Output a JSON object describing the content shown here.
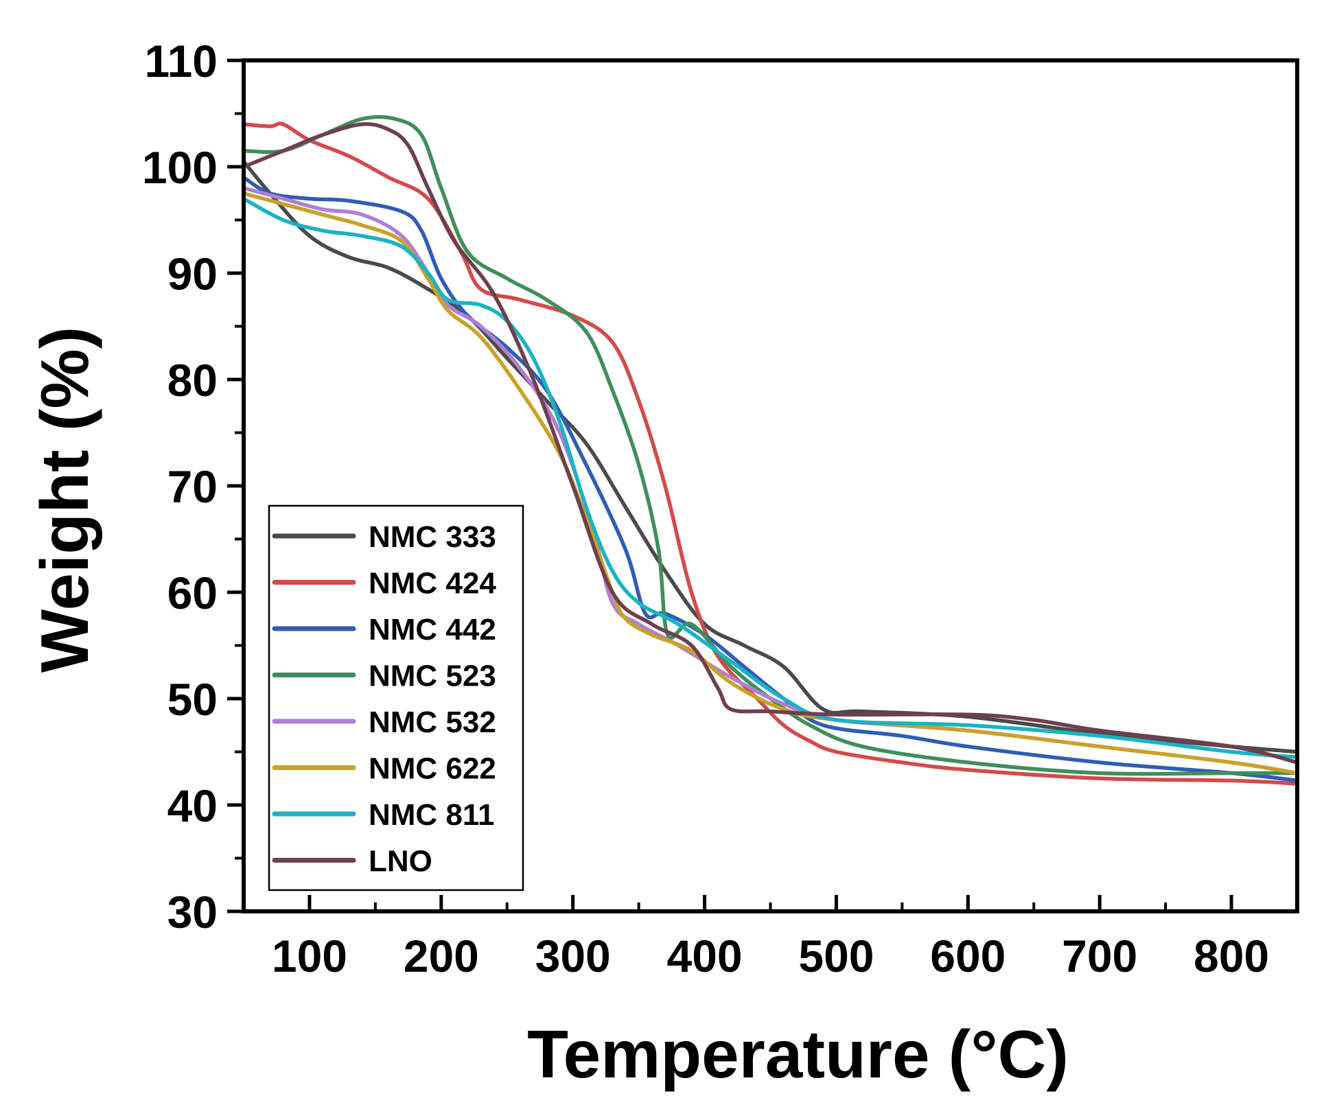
{
  "chart_data": {
    "type": "line",
    "title": "",
    "xlabel": "Temperature (°C)",
    "ylabel": "Weight (%)",
    "xlim": [
      50,
      850
    ],
    "ylim": [
      30,
      110
    ],
    "x_ticks": [
      100,
      200,
      300,
      400,
      500,
      600,
      700,
      800
    ],
    "x_tick_labels": [
      "100",
      "200",
      "300",
      "400",
      "500",
      "600",
      "700",
      "800"
    ],
    "y_ticks": [
      30,
      40,
      50,
      60,
      70,
      80,
      90,
      100,
      110
    ],
    "y_tick_labels": [
      "30",
      "40",
      "50",
      "60",
      "70",
      "80",
      "90",
      "100",
      "110"
    ],
    "grid": false,
    "legend_position": "bottom-left",
    "series": [
      {
        "name": "NMC 333",
        "color": "#4a4a4a",
        "x": [
          50,
          70,
          100,
          130,
          160,
          190,
          220,
          250,
          280,
          310,
          340,
          370,
          400,
          430,
          460,
          490,
          520,
          600,
          700,
          800,
          850
        ],
        "y": [
          100.5,
          97.5,
          93.5,
          91.5,
          90.5,
          88.5,
          86,
          82,
          78,
          74,
          68,
          62,
          57,
          55,
          53,
          49,
          48.8,
          48.3,
          46.7,
          45.5,
          45
        ]
      },
      {
        "name": "NMC 424",
        "color": "#d44a4a",
        "x": [
          50,
          70,
          80,
          100,
          130,
          160,
          190,
          215,
          230,
          260,
          300,
          330,
          350,
          370,
          390,
          410,
          440,
          460,
          480,
          500,
          550,
          600,
          700,
          800,
          850
        ],
        "y": [
          104,
          103.8,
          104,
          102.5,
          101,
          99,
          97,
          92,
          88.5,
          87.5,
          86,
          83.5,
          78,
          70,
          60,
          54,
          50,
          47.5,
          46,
          45,
          44,
          43.3,
          42.5,
          42.3,
          42
        ]
      },
      {
        "name": "NMC 442",
        "color": "#2f5db5",
        "x": [
          50,
          70,
          100,
          130,
          170,
          185,
          200,
          220,
          250,
          280,
          310,
          340,
          355,
          370,
          400,
          430,
          460,
          490,
          550,
          600,
          700,
          800,
          850
        ],
        "y": [
          99,
          97.5,
          97,
          96.8,
          95.8,
          94,
          89.5,
          86,
          83,
          79,
          72,
          64,
          58,
          58,
          56,
          53,
          50,
          47.5,
          46.5,
          45.5,
          44,
          43,
          42.3
        ]
      },
      {
        "name": "NMC 523",
        "color": "#3f8f5a",
        "x": [
          50,
          80,
          110,
          140,
          165,
          185,
          200,
          220,
          250,
          280,
          310,
          330,
          350,
          365,
          372,
          390,
          420,
          450,
          480,
          520,
          600,
          700,
          800,
          850
        ],
        "y": [
          101.5,
          101.5,
          103,
          104.5,
          104.5,
          103,
          98,
          92,
          89.5,
          87.5,
          84.5,
          79,
          72,
          64,
          56,
          57,
          53,
          50,
          47.5,
          45.5,
          44,
          43,
          43,
          43
        ]
      },
      {
        "name": "NMC 532",
        "color": "#b07fd4",
        "x": [
          50,
          80,
          110,
          140,
          170,
          190,
          205,
          230,
          260,
          290,
          315,
          330,
          350,
          380,
          420,
          460,
          500,
          600,
          700,
          800,
          850
        ],
        "y": [
          98,
          97,
          96,
          95.5,
          93.5,
          90,
          87,
          85,
          81,
          75,
          66,
          59,
          57,
          55,
          52,
          49.5,
          48,
          47,
          45.5,
          44,
          43
        ]
      },
      {
        "name": "NMC 622",
        "color": "#c9a227",
        "x": [
          50,
          80,
          110,
          140,
          170,
          190,
          205,
          230,
          260,
          290,
          310,
          330,
          340,
          360,
          390,
          420,
          460,
          500,
          600,
          700,
          800,
          850
        ],
        "y": [
          97.5,
          96.5,
          95.5,
          94.5,
          93,
          89.5,
          86.5,
          84,
          79,
          73,
          67,
          60,
          57.5,
          56,
          54.5,
          51.5,
          49,
          48,
          47,
          45.5,
          44,
          43
        ]
      },
      {
        "name": "NMC 811",
        "color": "#1ab3c4",
        "x": [
          50,
          80,
          110,
          140,
          170,
          190,
          205,
          230,
          250,
          270,
          290,
          310,
          330,
          350,
          380,
          420,
          460,
          500,
          600,
          700,
          800,
          850
        ],
        "y": [
          97,
          95,
          94,
          93.5,
          92.5,
          90,
          87.5,
          87,
          85.5,
          82,
          76,
          68,
          62,
          59,
          57,
          53.5,
          50,
          48,
          47.5,
          46.5,
          45,
          44.5
        ]
      },
      {
        "name": "LNO",
        "color": "#6e3f4f",
        "x": [
          50,
          80,
          110,
          140,
          160,
          175,
          190,
          210,
          240,
          270,
          300,
          330,
          360,
          390,
          410,
          420,
          450,
          500,
          600,
          650,
          700,
          800,
          850
        ],
        "y": [
          100,
          101.5,
          103,
          104,
          103.5,
          102,
          98,
          93,
          88,
          80,
          70,
          60,
          57,
          55,
          51,
          49,
          48.8,
          48.5,
          48.5,
          48,
          47,
          45.5,
          44
        ]
      }
    ]
  }
}
